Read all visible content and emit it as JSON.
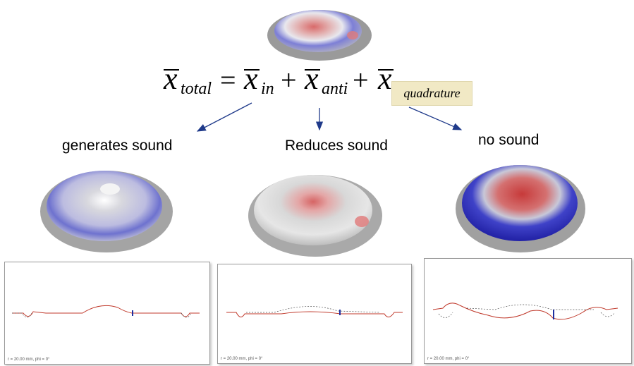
{
  "equation": {
    "lhs_subscript": "total",
    "terms": [
      "in",
      "anti",
      "quadrature"
    ],
    "equals": "=",
    "plus": "+",
    "variable": "x"
  },
  "columns": [
    {
      "label": "generates sound",
      "caption": "r = 20.00 mm, phi = 0°"
    },
    {
      "label": "Reduces sound",
      "caption": "r = 20.00 mm, phi = 0°"
    },
    {
      "label": "no sound",
      "caption": "r = 20.00 mm, phi = 0°"
    }
  ],
  "colors": {
    "arrow": "#1f3a8a",
    "quad_box": "#f1e9c5",
    "curve": "#c0392b",
    "dashed": "#555555",
    "marker": "#1f2fa0"
  }
}
